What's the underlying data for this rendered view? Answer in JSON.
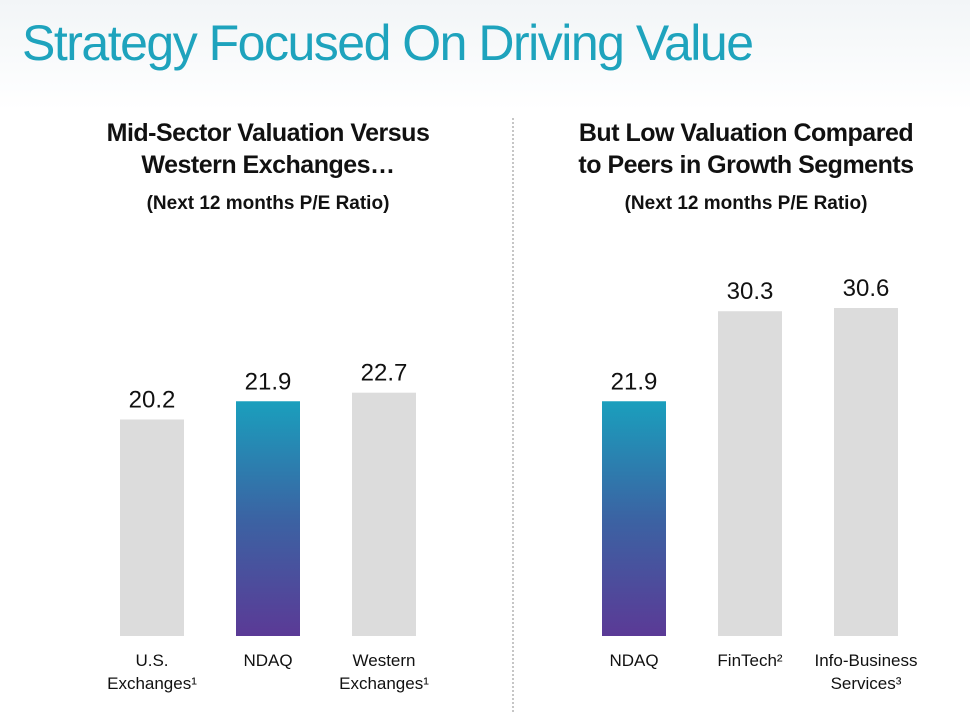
{
  "title": "Strategy Focused On Driving Value",
  "colors": {
    "title": "#1ea3bd",
    "bar_gray": "#dcdcdc",
    "ndaq_gradient_top": "#1a9fbd",
    "ndaq_gradient_mid": "#3b63a3",
    "ndaq_gradient_bottom": "#5b3a96"
  },
  "left_panel": {
    "heading_lines": [
      "Mid-Sector Valuation Versus",
      "Western Exchanges…"
    ],
    "subtitle": "(Next 12 months P/E Ratio)"
  },
  "right_panel": {
    "heading_lines": [
      "But Low Valuation Compared",
      "to Peers in Growth Segments"
    ],
    "subtitle": "(Next 12 months P/E Ratio)"
  },
  "chart_data": [
    {
      "type": "bar",
      "title": "Mid-Sector Valuation Versus Western Exchanges…",
      "subtitle": "(Next 12 months P/E Ratio)",
      "categories": [
        "U.S. Exchanges¹",
        "NDAQ",
        "Western Exchanges¹"
      ],
      "category_lines": [
        [
          "U.S.",
          "Exchanges¹"
        ],
        [
          "NDAQ"
        ],
        [
          "Western",
          "Exchanges¹"
        ]
      ],
      "values": [
        20.2,
        21.9,
        22.7
      ],
      "value_labels": [
        "20.2",
        "21.9",
        "22.7"
      ],
      "highlight": "NDAQ",
      "ylim": [
        0,
        30.6
      ],
      "grid": false,
      "xlabel": "",
      "ylabel": ""
    },
    {
      "type": "bar",
      "title": "But Low Valuation Compared to Peers in Growth Segments",
      "subtitle": "(Next 12 months P/E Ratio)",
      "categories": [
        "NDAQ",
        "FinTech²",
        "Info-Business Services³"
      ],
      "category_lines": [
        [
          "NDAQ"
        ],
        [
          "FinTech²"
        ],
        [
          "Info-Business",
          "Services³"
        ]
      ],
      "values": [
        21.9,
        30.3,
        30.6
      ],
      "value_labels": [
        "21.9",
        "30.3",
        "30.6"
      ],
      "highlight": "NDAQ",
      "ylim": [
        0,
        30.6
      ],
      "grid": false,
      "xlabel": "",
      "ylabel": ""
    }
  ]
}
